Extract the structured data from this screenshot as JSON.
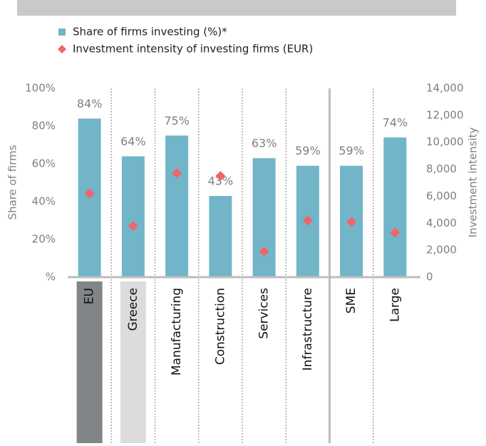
{
  "chart_data": {
    "type": "bar",
    "categories": [
      "EU",
      "Greece",
      "Manufacturing",
      "Construction",
      "Services",
      "Infrastructure",
      "SME",
      "Large"
    ],
    "category_box_colors": [
      "#818588",
      "#dcdcdc",
      null,
      null,
      null,
      null,
      null,
      null
    ],
    "series": [
      {
        "name": "Share of firms investing (%)*",
        "type": "bar",
        "color": "#72b5c9",
        "values": [
          84,
          64,
          75,
          43,
          63,
          59,
          59,
          74
        ],
        "value_labels": [
          "84%",
          "64%",
          "75%",
          "43%",
          "63%",
          "59%",
          "59%",
          "74%"
        ]
      },
      {
        "name": "Investment intensity of investing firms (EUR)",
        "type": "scatter",
        "axis": "y2",
        "color": "#f0646a",
        "values": [
          6200,
          3800,
          7700,
          7500,
          1900,
          4200,
          4100,
          3300
        ]
      }
    ],
    "ylabel": "Share of firms",
    "y2label": "Investment intensity",
    "ylim": [
      0,
      100
    ],
    "yticks": [
      {
        "value": 0,
        "label": "%"
      },
      {
        "value": 20,
        "label": "20%"
      },
      {
        "value": 40,
        "label": "40%"
      },
      {
        "value": 60,
        "label": "60%"
      },
      {
        "value": 80,
        "label": "80%"
      },
      {
        "value": 100,
        "label": "100%"
      }
    ],
    "y2lim": [
      0,
      14000
    ],
    "y2ticks": [
      0,
      {
        "value": 2000,
        "label": "2,000"
      },
      {
        "value": 4000,
        "label": "4,000"
      },
      {
        "value": 6000,
        "label": "6,000"
      },
      {
        "value": 8000,
        "label": "8,000"
      },
      {
        "value": 10000,
        "label": "10,000"
      },
      {
        "value": 12000,
        "label": "12,000"
      },
      {
        "value": 14000,
        "label": "14,000"
      }
    ]
  }
}
